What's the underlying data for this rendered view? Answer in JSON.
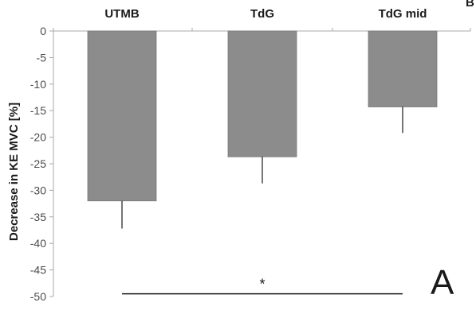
{
  "chart_data": {
    "type": "bar",
    "categories": [
      "UTMB",
      "TdG",
      "TdG mid"
    ],
    "values": [
      -32,
      -23.7,
      -14.3
    ],
    "error_bars": [
      5.2,
      5.0,
      4.9
    ],
    "ylabel": "Decrease in KE MVC [%]",
    "xlabel": "",
    "ylim": [
      -50,
      0
    ],
    "yticks": [
      0,
      -5,
      -10,
      -15,
      -20,
      -25,
      -30,
      -35,
      -40,
      -45,
      -50
    ],
    "ytick_labels": [
      "0",
      "-5",
      "-10",
      "-15",
      "-20",
      "-25",
      "-30",
      "-35",
      "-40",
      "-45",
      "-50"
    ],
    "category_position": "top",
    "grid": false,
    "legend": "none",
    "bar_color": "#8c8c8c",
    "axis_color": "#a8a8a8",
    "annotations": {
      "panel_label": "A",
      "significance": {
        "from": "UTMB",
        "to": "TdG mid",
        "label": "*",
        "y": -49.5
      },
      "corner_text": "B"
    }
  }
}
